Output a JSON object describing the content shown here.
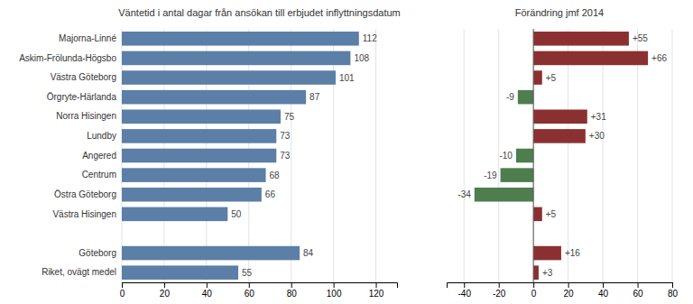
{
  "chart_data": [
    {
      "type": "bar",
      "orientation": "horizontal",
      "title": "Väntetid i antal dagar från ansökan till erbjudet inflyttningsdatum",
      "categories": [
        "Majorna-Linné",
        "Askim-Frölunda-Högsbo",
        "Västra Göteborg",
        "Örgryte-Härlanda",
        "Norra Hisingen",
        "Lundby",
        "Angered",
        "Centrum",
        "Östra Göteborg",
        "Västra Hisingen",
        null,
        "Göteborg",
        "Riket, ovägt medel"
      ],
      "values": [
        112,
        108,
        101,
        87,
        75,
        73,
        73,
        68,
        66,
        50,
        null,
        84,
        55
      ],
      "color": "#5b7fa6",
      "xlim": [
        0,
        130
      ],
      "xticks": [
        0,
        20,
        40,
        60,
        80,
        100,
        120
      ],
      "grid": true,
      "data_labels": true
    },
    {
      "type": "bar",
      "orientation": "horizontal",
      "title": "Förändring jmf 2014",
      "values": [
        55,
        66,
        5,
        -9,
        31,
        30,
        -10,
        -19,
        -34,
        5,
        null,
        16,
        3
      ],
      "value_labels": [
        "+55",
        "+66",
        "+5",
        "-9",
        "+31",
        "+30",
        "-10",
        "-19",
        "-34",
        "+5",
        null,
        "+16",
        "+3"
      ],
      "colors": [
        "#8b3030",
        "#8b3030",
        "#8b3030",
        "#4e7e4e",
        "#8b3030",
        "#8b3030",
        "#4e7e4e",
        "#4e7e4e",
        "#4e7e4e",
        "#8b3030",
        null,
        "#8b3030",
        "#8b3030"
      ],
      "xlim": [
        -50,
        80
      ],
      "xticks": [
        -40,
        -20,
        0,
        20,
        40,
        60,
        80
      ],
      "grid": true,
      "data_labels": true,
      "tick_labels": "x"
    }
  ]
}
